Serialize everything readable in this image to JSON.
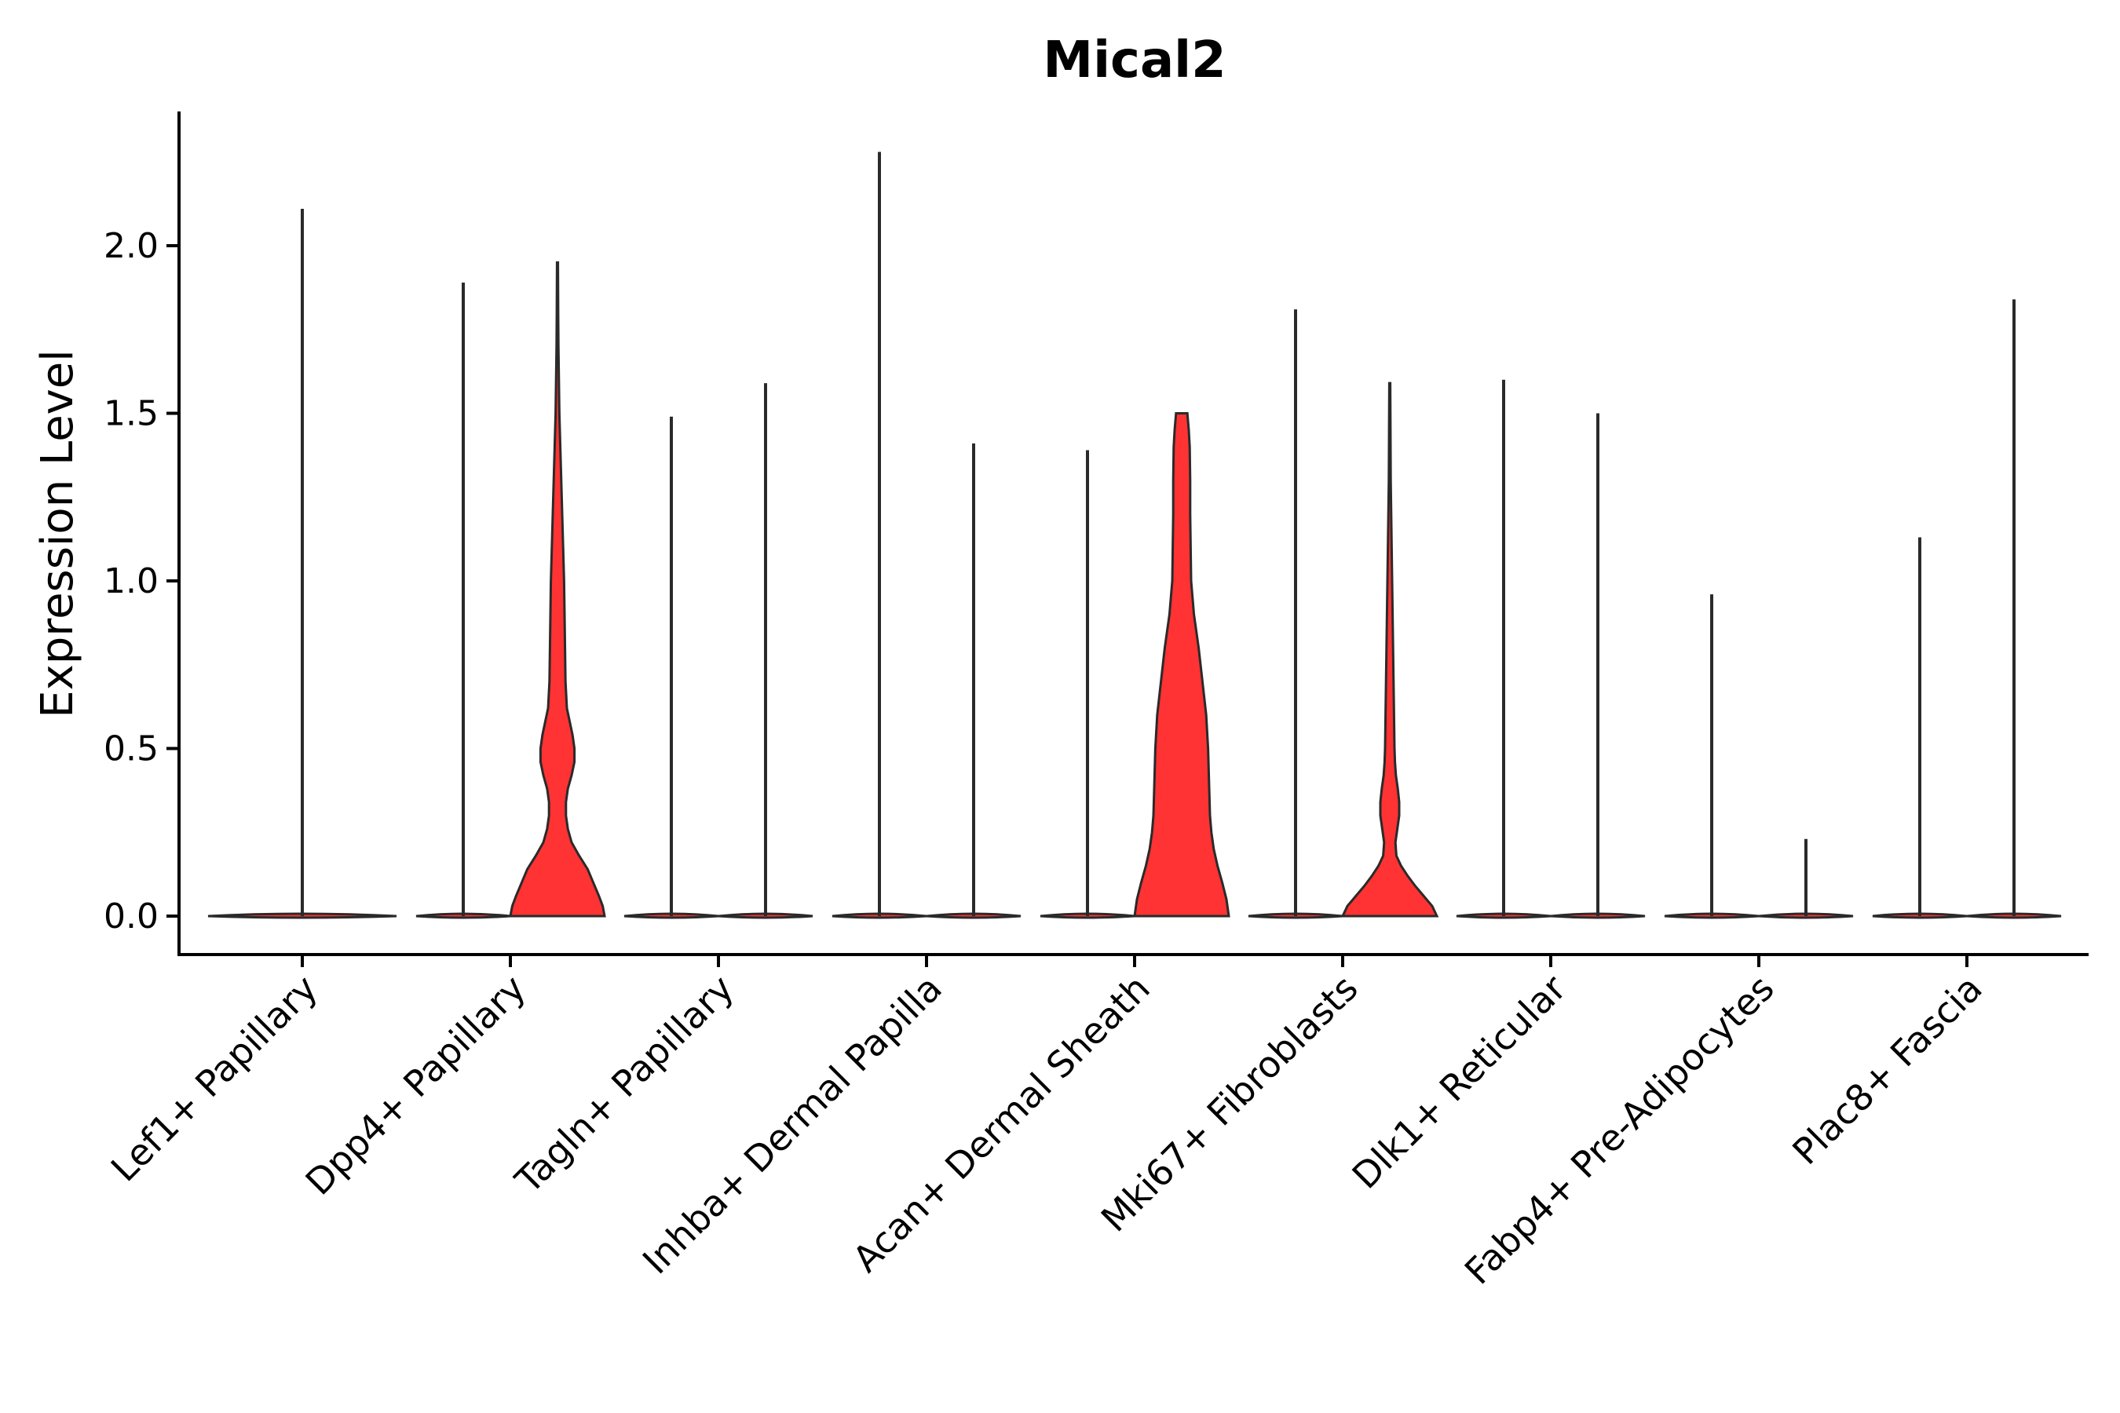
{
  "chart_data": {
    "type": "violin",
    "title": "Mical2",
    "xlabel": "",
    "ylabel": "Expression Level",
    "ylim": [
      -0.12,
      2.4
    ],
    "yticks": [
      0.0,
      0.5,
      1.0,
      1.5,
      2.0
    ],
    "ytick_labels": [
      "0.0",
      "0.5",
      "1.0",
      "1.5",
      "2.0"
    ],
    "fill_color": "#ff3333",
    "categories": [
      "Lef1+ Papillary",
      "Dpp4+ Papillary",
      "Tagln+ Papillary",
      "Inhba+ Dermal Papilla",
      "Acan+ Dermal Sheath",
      "Mki67+ Fibroblasts",
      "Dlk1+ Reticular",
      "Fabp4+ Pre-Adipocytes",
      "Plac8+ Fascia"
    ],
    "groups": [
      {
        "category": "Lef1+ Papillary",
        "violins": [
          {
            "max": 2.11,
            "shape": "flat"
          }
        ]
      },
      {
        "category": "Dpp4+ Papillary",
        "violins": [
          {
            "max": 1.89,
            "shape": "flat"
          },
          {
            "max": 1.95,
            "shape": "dense"
          }
        ]
      },
      {
        "category": "Tagln+ Papillary",
        "violins": [
          {
            "max": 1.49,
            "shape": "flat"
          },
          {
            "max": 1.59,
            "shape": "flat"
          }
        ]
      },
      {
        "category": "Inhba+ Dermal Papilla",
        "violins": [
          {
            "max": 2.28,
            "shape": "flat"
          },
          {
            "max": 1.41,
            "shape": "flat"
          }
        ]
      },
      {
        "category": "Acan+ Dermal Sheath",
        "violins": [
          {
            "max": 1.39,
            "shape": "flat"
          },
          {
            "max": 1.5,
            "shape": "dense"
          }
        ]
      },
      {
        "category": "Mki67+ Fibroblasts",
        "violins": [
          {
            "max": 1.81,
            "shape": "flat"
          },
          {
            "max": 1.59,
            "shape": "dense"
          }
        ]
      },
      {
        "category": "Dlk1+ Reticular",
        "violins": [
          {
            "max": 1.6,
            "shape": "flat"
          },
          {
            "max": 1.5,
            "shape": "flat"
          }
        ]
      },
      {
        "category": "Fabp4+ Pre-Adipocytes",
        "violins": [
          {
            "max": 0.96,
            "shape": "flat"
          },
          {
            "max": 0.23,
            "shape": "flat"
          }
        ]
      },
      {
        "category": "Plac8+ Fascia",
        "violins": [
          {
            "max": 1.13,
            "shape": "flat"
          },
          {
            "max": 1.84,
            "shape": "flat"
          }
        ]
      }
    ],
    "density_profiles": [
      {
        "group": "Dpp4+ Papillary",
        "y": [
          0,
          0.03,
          0.06,
          0.1,
          0.14,
          0.18,
          0.22,
          0.26,
          0.3,
          0.34,
          0.38,
          0.42,
          0.46,
          0.5,
          0.54,
          0.58,
          0.62,
          0.7,
          0.8,
          0.9,
          1.0,
          1.1,
          1.2,
          1.3,
          1.4,
          1.5,
          1.6,
          1.7,
          1.8,
          1.95
        ],
        "w": [
          1.0,
          0.96,
          0.88,
          0.76,
          0.64,
          0.46,
          0.3,
          0.22,
          0.18,
          0.18,
          0.22,
          0.3,
          0.36,
          0.36,
          0.32,
          0.26,
          0.2,
          0.17,
          0.16,
          0.15,
          0.14,
          0.12,
          0.1,
          0.08,
          0.06,
          0.04,
          0.03,
          0.02,
          0.015,
          0.01
        ]
      },
      {
        "group": "Acan+ Dermal Sheath",
        "y": [
          0,
          0.05,
          0.1,
          0.15,
          0.2,
          0.25,
          0.3,
          0.4,
          0.5,
          0.6,
          0.7,
          0.8,
          0.9,
          1.0,
          1.1,
          1.2,
          1.3,
          1.4,
          1.45,
          1.5
        ],
        "w": [
          1.0,
          0.95,
          0.86,
          0.76,
          0.68,
          0.63,
          0.6,
          0.58,
          0.56,
          0.52,
          0.44,
          0.36,
          0.26,
          0.2,
          0.19,
          0.18,
          0.18,
          0.17,
          0.15,
          0.12
        ]
      },
      {
        "group": "Mki67+ Fibroblasts",
        "y": [
          0,
          0.03,
          0.06,
          0.09,
          0.12,
          0.15,
          0.18,
          0.22,
          0.26,
          0.3,
          0.34,
          0.38,
          0.42,
          0.46,
          0.5,
          0.6,
          0.7,
          0.8,
          0.9,
          1.0,
          1.1,
          1.2,
          1.3,
          1.45,
          1.59
        ],
        "w": [
          1.0,
          0.9,
          0.72,
          0.54,
          0.38,
          0.24,
          0.14,
          0.12,
          0.16,
          0.2,
          0.2,
          0.17,
          0.13,
          0.11,
          0.1,
          0.09,
          0.08,
          0.07,
          0.06,
          0.05,
          0.04,
          0.03,
          0.02,
          0.015,
          0.01
        ]
      }
    ]
  }
}
